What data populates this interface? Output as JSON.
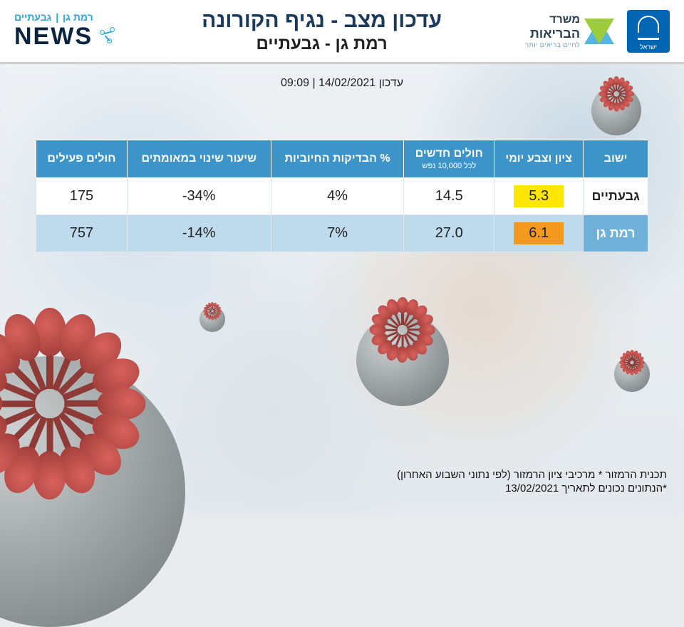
{
  "header": {
    "emblem_label": "ישראל",
    "moh_line1": "משרד",
    "moh_line2": "הבריאות",
    "moh_tagline": "לחיים בריאים יותר",
    "title_main": "עדכון מצב - נגיף הקורונה",
    "title_sub": "רמת גן - גבעתיים",
    "news_top_1": "רמת גן",
    "news_top_2": "גבעתיים",
    "news_word": "NEWS"
  },
  "update": {
    "prefix": "עדכון",
    "date": "14/02/2021",
    "sep": "|",
    "time": "09:09"
  },
  "table": {
    "columns": {
      "city": "ישוב",
      "score": "ציון וצבע יומי",
      "new_cases": "חולים חדשים",
      "new_cases_sub": "לכל 10,000 נפש",
      "positive": "% הבדיקות החיוביות",
      "change": "שיעור שינוי במאומתים",
      "active": "חולים פעילים"
    },
    "rows": [
      {
        "city": "גבעתיים",
        "score": "5.3",
        "score_color": "#ffe600",
        "new_cases": "14.5",
        "positive": "4%",
        "change": "-34%",
        "active": "175",
        "row_bg": "#ffffff"
      },
      {
        "city": "רמת גן",
        "score": "6.1",
        "score_color": "#f39a1e",
        "new_cases": "27.0",
        "positive": "7%",
        "change": "-14%",
        "active": "757",
        "row_bg": "#bedbed"
      }
    ],
    "header_bg": "#3d94c9",
    "header_text_color": "#ffffff",
    "border_color": "#dfe6ec",
    "font_size_header": 16,
    "font_size_cell": 20
  },
  "footer": {
    "line1": "תכנית הרמזור * מרכיבי ציון הרמזור (לפי נתוני השבוע האחרון)",
    "line2": "*הנתונים נכונים לתאריך 13/02/2021"
  },
  "colors": {
    "brand_blue": "#0066b3",
    "light_blue": "#57b6e0",
    "green": "#9ccb3b",
    "title_blue": "#1a3a5c",
    "news_cyan": "#2aa7df",
    "news_dark": "#0b2540"
  }
}
